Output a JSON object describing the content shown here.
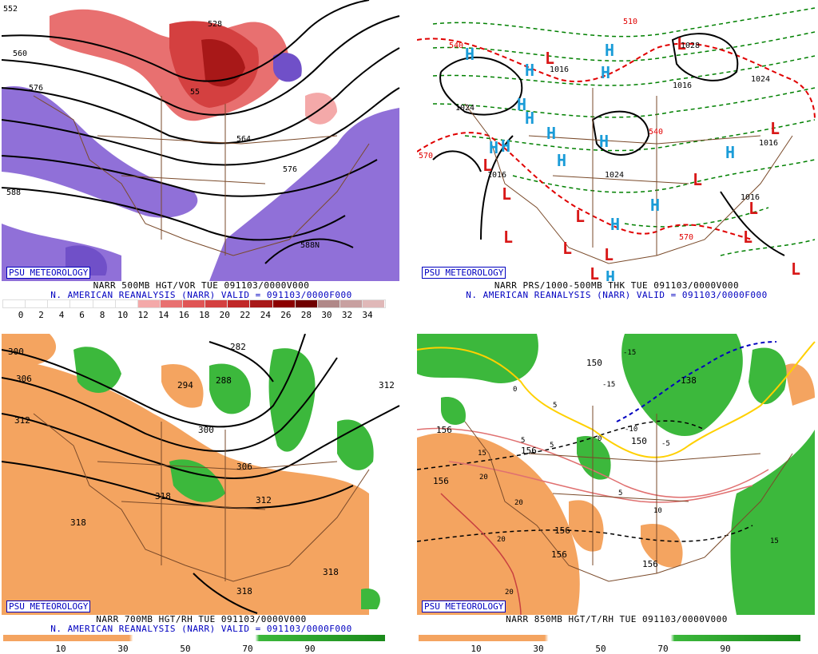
{
  "panels": [
    {
      "id": "p1",
      "brand": "PSU METEOROLOGY",
      "line1": "NARR 500MB HGT/VOR TUE 091103/0000V000",
      "line2": "N. AMERICAN REANALYSIS (NARR) VALID = 091103/0000F000",
      "contour_labels": [
        "552",
        "528",
        "560",
        "576",
        "55",
        "564",
        "576",
        "588",
        "588N"
      ],
      "colorbar": [
        "#ffffff",
        "#ffffff",
        "#ffffff",
        "#ffffff",
        "#ffffff",
        "#ffffff",
        "#f4a9a9",
        "#e87070",
        "#e05555",
        "#d44040",
        "#c02828",
        "#a81818",
        "#8c0000",
        "#700000",
        "#b08888",
        "#c8a0a0",
        "#e0b8b8"
      ],
      "ticks": [
        "0",
        "2",
        "4",
        "6",
        "8",
        "10",
        "12",
        "14",
        "16",
        "18",
        "20",
        "22",
        "24",
        "26",
        "28",
        "30",
        "32",
        "34"
      ]
    },
    {
      "id": "p2",
      "brand": "PSU METEOROLOGY",
      "line1": "NARR PRS/1000-500MB THK TUE 091103/0000V000",
      "line2": "N. AMERICAN REANALYSIS (NARR) VALID = 091103/0000F000",
      "pressure_labels": [
        "1016",
        "1024",
        "1016",
        "1016",
        "1016",
        "1024",
        "1016",
        "1028",
        "1024"
      ],
      "thickness_labels": [
        "540",
        "540",
        "570",
        "570",
        "510"
      ],
      "highs": "H",
      "lows": "L"
    },
    {
      "id": "p3",
      "brand": "PSU METEOROLOGY",
      "line1": "NARR 700MB HGT/RH TUE 091103/0000V000",
      "line2": "N. AMERICAN REANALYSIS (NARR) VALID = 091103/0000F000",
      "contour_labels": [
        "300",
        "306",
        "312",
        "282",
        "294",
        "288",
        "300",
        "306",
        "312",
        "318",
        "318",
        "318",
        "318",
        "312"
      ],
      "ticks": [
        "10",
        "30",
        "50",
        "70",
        "90"
      ]
    },
    {
      "id": "p4",
      "brand": "PSU METEOROLOGY",
      "line1": "NARR 850MB HGT/T/RH TUE 091103/0000V000",
      "height_labels": [
        "156",
        "156",
        "156",
        "156",
        "156",
        "156",
        "150",
        "150",
        "138"
      ],
      "temp_labels": [
        "-15",
        "-15",
        "-10",
        "-5",
        "0",
        "0",
        "5",
        "5",
        "5",
        "5",
        "10",
        "15",
        "15",
        "20",
        "20",
        "20",
        "20"
      ],
      "ticks": [
        "10",
        "30",
        "50",
        "70",
        "90"
      ]
    }
  ]
}
